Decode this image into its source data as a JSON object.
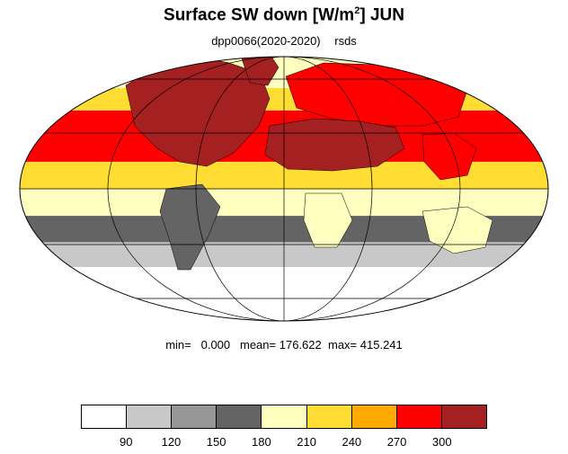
{
  "title": {
    "main": "Surface SW down [W/m",
    "sup": "2",
    "tail": "]  JUN"
  },
  "subtitle": {
    "experiment": "dpp0066(2020-2020)",
    "variable": "rsds"
  },
  "stats": {
    "min_label": "min=",
    "min_value": "0.000",
    "mean_label": "mean=",
    "mean_value": "176.622",
    "max_label": "max=",
    "max_value": "415.241"
  },
  "colorbar": {
    "colors": [
      "#ffffff",
      "#c8c8c8",
      "#969696",
      "#646464",
      "#ffffc0",
      "#ffdd33",
      "#ffaa00",
      "#ff0000",
      "#a52020"
    ],
    "labels": [
      "90",
      "120",
      "150",
      "180",
      "210",
      "240",
      "270",
      "300"
    ]
  },
  "map": {
    "projection": "Mollweide",
    "field": "rsds",
    "month": "JUN",
    "latitude_bands": [
      {
        "lat_range": [
          60,
          90
        ],
        "level": 4
      },
      {
        "lat_range": [
          45,
          60
        ],
        "level": 5
      },
      {
        "lat_range": [
          30,
          45
        ],
        "level": 7
      },
      {
        "lat_range": [
          15,
          30
        ],
        "level": 7
      },
      {
        "lat_range": [
          0,
          15
        ],
        "level": 5
      },
      {
        "lat_range": [
          -15,
          0
        ],
        "level": 4
      },
      {
        "lat_range": [
          -30,
          -15
        ],
        "level": 3
      },
      {
        "lat_range": [
          -45,
          -30
        ],
        "level": 1
      },
      {
        "lat_range": [
          -90,
          -45
        ],
        "level": 0
      }
    ],
    "regions": [
      {
        "name": "North America",
        "level": 8
      },
      {
        "name": "Sahara / Arabia",
        "level": 8
      },
      {
        "name": "Eurasia",
        "level": 7
      },
      {
        "name": "Siberia",
        "level": 7
      },
      {
        "name": "Greenland",
        "level": 8
      },
      {
        "name": "Tibet / China",
        "level": 7
      },
      {
        "name": "Southern Africa",
        "level": 4
      },
      {
        "name": "Australia",
        "level": 4
      },
      {
        "name": "South America",
        "level": 3
      }
    ]
  }
}
